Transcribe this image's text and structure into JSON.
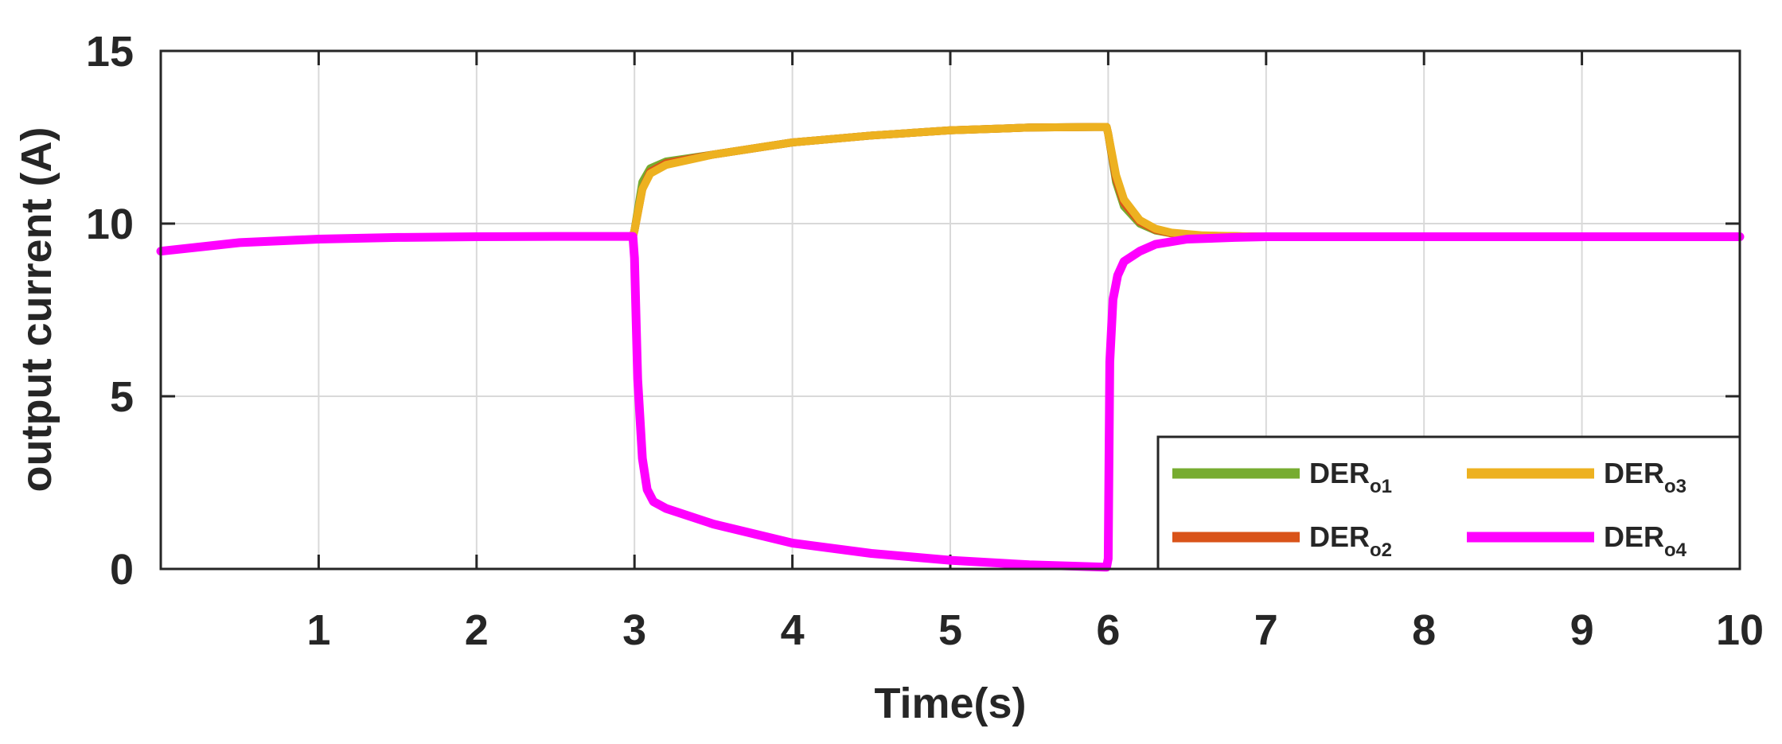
{
  "chart_data": {
    "type": "line",
    "xlabel": "Time(s)",
    "ylabel": "output current (A)",
    "xlim": [
      0,
      10
    ],
    "ylim": [
      0,
      15
    ],
    "xticks": [
      1,
      2,
      3,
      4,
      5,
      6,
      7,
      8,
      9,
      10
    ],
    "yticks": [
      0,
      5,
      10,
      15
    ],
    "grid": true,
    "legend_position": "bottom-right",
    "series": [
      {
        "name": "DER",
        "subscript": "o1",
        "color": "#77ac30",
        "x": [
          0,
          0.5,
          1,
          1.5,
          2,
          2.5,
          2.99,
          3.0,
          3.05,
          3.1,
          3.2,
          3.5,
          4,
          4.5,
          5,
          5.5,
          5.99,
          6.0,
          6.05,
          6.1,
          6.2,
          6.3,
          6.4,
          6.6,
          7,
          8,
          9,
          10
        ],
        "y": [
          9.2,
          9.45,
          9.55,
          9.6,
          9.62,
          9.63,
          9.63,
          9.8,
          11.2,
          11.6,
          11.8,
          12.0,
          12.35,
          12.55,
          12.7,
          12.78,
          12.8,
          12.6,
          11.2,
          10.5,
          10.0,
          9.8,
          9.72,
          9.65,
          9.62,
          9.62,
          9.62,
          9.62
        ]
      },
      {
        "name": "DER",
        "subscript": "o2",
        "color": "#d95319",
        "x": [
          0,
          0.5,
          1,
          1.5,
          2,
          2.5,
          2.99,
          3.0,
          3.05,
          3.1,
          3.2,
          3.5,
          4,
          4.5,
          5,
          5.5,
          5.99,
          6.0,
          6.05,
          6.1,
          6.2,
          6.3,
          6.4,
          6.6,
          7,
          8,
          9,
          10
        ],
        "y": [
          9.2,
          9.45,
          9.55,
          9.6,
          9.62,
          9.63,
          9.63,
          9.8,
          11.0,
          11.5,
          11.75,
          12.0,
          12.35,
          12.55,
          12.7,
          12.78,
          12.8,
          12.6,
          11.3,
          10.6,
          10.05,
          9.82,
          9.72,
          9.65,
          9.62,
          9.62,
          9.62,
          9.62
        ]
      },
      {
        "name": "DER",
        "subscript": "o3",
        "color": "#edb120",
        "x": [
          0,
          0.5,
          1,
          1.5,
          2,
          2.5,
          2.99,
          3.0,
          3.05,
          3.1,
          3.2,
          3.5,
          4,
          4.5,
          5,
          5.5,
          5.99,
          6.0,
          6.05,
          6.1,
          6.2,
          6.3,
          6.4,
          6.6,
          7,
          8,
          9,
          10
        ],
        "y": [
          9.2,
          9.45,
          9.55,
          9.6,
          9.62,
          9.63,
          9.63,
          9.8,
          11.0,
          11.45,
          11.7,
          12.0,
          12.35,
          12.55,
          12.7,
          12.78,
          12.8,
          12.6,
          11.4,
          10.7,
          10.1,
          9.85,
          9.74,
          9.66,
          9.62,
          9.62,
          9.62,
          9.62
        ]
      },
      {
        "name": "DER",
        "subscript": "o4",
        "color": "#ff00ff",
        "x": [
          0,
          0.5,
          1,
          1.5,
          2,
          2.5,
          2.99,
          3.0,
          3.02,
          3.05,
          3.08,
          3.12,
          3.2,
          3.5,
          4,
          4.5,
          5,
          5.5,
          5.98,
          5.99,
          6.0,
          6.01,
          6.03,
          6.06,
          6.1,
          6.2,
          6.3,
          6.5,
          6.8,
          7,
          8,
          9,
          10
        ],
        "y": [
          9.2,
          9.45,
          9.55,
          9.6,
          9.62,
          9.63,
          9.63,
          9.0,
          5.5,
          3.2,
          2.3,
          1.95,
          1.75,
          1.3,
          0.75,
          0.45,
          0.25,
          0.12,
          0.05,
          0.05,
          0.3,
          6.0,
          7.8,
          8.5,
          8.9,
          9.2,
          9.4,
          9.55,
          9.6,
          9.62,
          9.62,
          9.62,
          9.62
        ]
      }
    ]
  }
}
